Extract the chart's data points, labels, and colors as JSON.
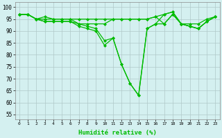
{
  "x": [
    0,
    1,
    2,
    3,
    4,
    5,
    6,
    7,
    8,
    9,
    10,
    11,
    12,
    13,
    14,
    15,
    16,
    17,
    18,
    19,
    20,
    21,
    22,
    23
  ],
  "s1": [
    97,
    97,
    95,
    96,
    95,
    95,
    95,
    95,
    95,
    95,
    95,
    95,
    95,
    95,
    95,
    95,
    96,
    97,
    98,
    93,
    93,
    93,
    95,
    96
  ],
  "s2": [
    97,
    97,
    95,
    95,
    95,
    95,
    95,
    93,
    93,
    93,
    93,
    95,
    95,
    95,
    95,
    95,
    96,
    93,
    97,
    93,
    92,
    91,
    94,
    96
  ],
  "s3_x": [
    0,
    1,
    2,
    3,
    4,
    5,
    6,
    7,
    8,
    9,
    10,
    11,
    12,
    13,
    14,
    15,
    16,
    17,
    18,
    19,
    20,
    21,
    22,
    23
  ],
  "s3": [
    97,
    97,
    95,
    94,
    94,
    94,
    94,
    93,
    92,
    91,
    86,
    87,
    76,
    68,
    63,
    91,
    93,
    93,
    97,
    93,
    92,
    91,
    94,
    96
  ],
  "s4_x": [
    0,
    1,
    2,
    3,
    4,
    5,
    6,
    7,
    8,
    9,
    10,
    11,
    12,
    13,
    14,
    15,
    16,
    17,
    18,
    19,
    20,
    21,
    22,
    23
  ],
  "s4": [
    97,
    97,
    95,
    94,
    94,
    94,
    94,
    92,
    91,
    90,
    84,
    87,
    76,
    68,
    63,
    91,
    93,
    97,
    98,
    93,
    92,
    91,
    94,
    96
  ],
  "line_color": "#00bb00",
  "background_color": "#d4f0f0",
  "grid_color": "#b0c8c8",
  "xlabel": "Humidité relative (%)",
  "xlabel_color": "#00bb00",
  "yticks": [
    55,
    60,
    65,
    70,
    75,
    80,
    85,
    90,
    95,
    100
  ],
  "xlim": [
    -0.5,
    23.5
  ],
  "ylim": [
    53,
    102
  ]
}
